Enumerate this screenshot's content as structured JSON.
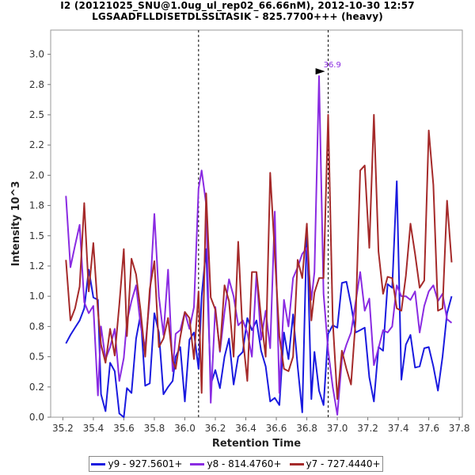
{
  "title_line1": "I2 (20121025_SNU@1.0ug_ul_rep02_66.66nM), 2012-10-30 12:57",
  "title_line2": "LGSAADFLLDISETDLSSLTASIK - 825.7700+++ (heavy)",
  "chart_data": {
    "type": "line",
    "xlabel": "Retention Time",
    "ylabel": "Intensity 10^3",
    "xlim": [
      35.12,
      37.82
    ],
    "ylim": [
      0,
      3.2
    ],
    "x_ticks": [
      "35.2",
      "35.4",
      "35.6",
      "35.8",
      "36.0",
      "36.2",
      "36.4",
      "36.6",
      "36.8",
      "37.0",
      "37.2",
      "37.4",
      "37.6",
      "37.8"
    ],
    "y_ticks": [
      "0.0",
      "0.2",
      "0.5",
      "0.8",
      "1.0",
      "1.2",
      "1.5",
      "1.8",
      "2.0",
      "2.2",
      "2.5",
      "2.8",
      "3.0"
    ],
    "vlines": [
      36.09,
      36.94
    ],
    "peak_annotation": {
      "text": "36.9",
      "x": 36.93,
      "y": 2.82
    },
    "series": [
      {
        "name": "y9 - 927.5601+",
        "color": "#1a1adf",
        "x": [
          35.22,
          35.25,
          35.28,
          35.31,
          35.34,
          35.37,
          35.4,
          35.43,
          35.45,
          35.48,
          35.51,
          35.54,
          35.57,
          35.6,
          35.62,
          35.65,
          35.68,
          35.71,
          35.74,
          35.77,
          35.8,
          35.83,
          35.86,
          35.89,
          35.92,
          35.94,
          35.97,
          36.0,
          36.03,
          36.06,
          36.09,
          36.11,
          36.14,
          36.17,
          36.2,
          36.23,
          36.26,
          36.29,
          36.32,
          36.35,
          36.38,
          36.41,
          36.44,
          36.47,
          36.5,
          36.53,
          36.56,
          36.59,
          36.62,
          36.65,
          36.68,
          36.71,
          36.74,
          36.77,
          36.8,
          36.83,
          36.85,
          36.88,
          36.91,
          36.94,
          36.97,
          37.0,
          37.03,
          37.06,
          37.09,
          37.12,
          37.15,
          37.18,
          37.21,
          37.24,
          37.27,
          37.3,
          37.33,
          37.36,
          37.39,
          37.42,
          37.45,
          37.48,
          37.51,
          37.54,
          37.57,
          37.6,
          37.63,
          37.66,
          37.69,
          37.72,
          37.75
        ],
        "y": [
          0.61,
          0.68,
          0.74,
          0.8,
          0.9,
          1.22,
          0.99,
          0.97,
          0.19,
          0.05,
          0.45,
          0.38,
          0.03,
          0.0,
          0.24,
          0.2,
          0.65,
          0.85,
          0.26,
          0.28,
          0.86,
          0.7,
          0.19,
          0.25,
          0.3,
          0.5,
          0.58,
          0.13,
          0.64,
          0.7,
          0.4,
          1.0,
          1.39,
          0.27,
          0.39,
          0.24,
          0.5,
          0.65,
          0.27,
          0.5,
          0.54,
          0.82,
          0.72,
          0.8,
          0.55,
          0.42,
          0.13,
          0.16,
          0.1,
          0.7,
          0.48,
          0.85,
          0.42,
          0.04,
          1.57,
          0.15,
          0.54,
          0.22,
          0.1,
          0.69,
          0.76,
          0.74,
          1.11,
          1.12,
          0.93,
          0.7,
          0.72,
          0.74,
          0.33,
          0.13,
          0.58,
          0.55,
          1.1,
          1.07,
          1.95,
          0.31,
          0.6,
          0.68,
          0.41,
          0.42,
          0.57,
          0.58,
          0.42,
          0.22,
          0.5,
          0.86,
          1.0
        ]
      },
      {
        "name": "y8 - 814.4760+",
        "color": "#8a2be2",
        "x": [
          35.22,
          35.25,
          35.28,
          35.31,
          35.34,
          35.37,
          35.4,
          35.43,
          35.45,
          35.48,
          35.51,
          35.54,
          35.57,
          35.6,
          35.62,
          35.65,
          35.68,
          35.71,
          35.74,
          35.77,
          35.8,
          35.83,
          35.86,
          35.89,
          35.92,
          35.94,
          35.97,
          36.0,
          36.03,
          36.06,
          36.09,
          36.11,
          36.14,
          36.17,
          36.2,
          36.23,
          36.26,
          36.29,
          36.32,
          36.35,
          36.38,
          36.41,
          36.44,
          36.47,
          36.5,
          36.53,
          36.56,
          36.59,
          36.62,
          36.65,
          36.68,
          36.71,
          36.74,
          36.77,
          36.8,
          36.83,
          36.85,
          36.88,
          36.91,
          36.94,
          36.97,
          37.0,
          37.03,
          37.06,
          37.09,
          37.12,
          37.15,
          37.18,
          37.21,
          37.24,
          37.27,
          37.3,
          37.33,
          37.36,
          37.39,
          37.42,
          37.45,
          37.48,
          37.51,
          37.54,
          37.57,
          37.6,
          37.63,
          37.66,
          37.69,
          37.72,
          37.75
        ],
        "y": [
          1.83,
          1.24,
          1.42,
          1.59,
          0.95,
          0.86,
          0.92,
          0.18,
          0.75,
          0.48,
          0.58,
          0.73,
          0.3,
          0.49,
          0.79,
          0.96,
          1.09,
          0.76,
          0.57,
          0.99,
          1.68,
          1.0,
          0.68,
          1.22,
          0.38,
          0.69,
          0.72,
          0.87,
          0.73,
          0.91,
          1.89,
          2.04,
          1.76,
          0.12,
          0.91,
          0.54,
          0.87,
          1.14,
          1.0,
          0.76,
          0.8,
          0.7,
          0.5,
          1.19,
          0.64,
          0.88,
          0.57,
          1.7,
          0.2,
          0.97,
          0.75,
          1.15,
          1.24,
          1.35,
          1.4,
          0.97,
          1.2,
          2.82,
          1.02,
          0.55,
          0.25,
          0.02,
          0.48,
          0.6,
          0.7,
          0.95,
          1.2,
          0.88,
          0.98,
          0.43,
          0.57,
          0.72,
          0.7,
          0.75,
          1.09,
          1.0,
          1.0,
          0.97,
          1.04,
          0.7,
          0.92,
          1.04,
          1.09,
          0.96,
          1.02,
          0.81,
          0.78
        ]
      },
      {
        "name": "y7 - 727.4440+",
        "color": "#a52a2a",
        "x": [
          35.22,
          35.25,
          35.28,
          35.31,
          35.34,
          35.37,
          35.4,
          35.43,
          35.45,
          35.48,
          35.51,
          35.54,
          35.57,
          35.6,
          35.62,
          35.65,
          35.68,
          35.71,
          35.74,
          35.77,
          35.8,
          35.83,
          35.86,
          35.89,
          35.92,
          35.94,
          35.97,
          36.0,
          36.03,
          36.06,
          36.09,
          36.11,
          36.14,
          36.17,
          36.2,
          36.23,
          36.26,
          36.29,
          36.32,
          36.35,
          36.38,
          36.41,
          36.44,
          36.47,
          36.5,
          36.53,
          36.56,
          36.59,
          36.62,
          36.65,
          36.68,
          36.71,
          36.74,
          36.77,
          36.8,
          36.83,
          36.85,
          36.88,
          36.91,
          36.94,
          36.97,
          37.0,
          37.03,
          37.06,
          37.09,
          37.12,
          37.15,
          37.18,
          37.21,
          37.24,
          37.27,
          37.3,
          37.33,
          37.36,
          37.39,
          37.42,
          37.45,
          37.48,
          37.51,
          37.54,
          37.57,
          37.6,
          37.63,
          37.66,
          37.69,
          37.72,
          37.75
        ],
        "y": [
          1.3,
          0.8,
          0.9,
          1.08,
          1.77,
          1.04,
          1.44,
          0.88,
          0.6,
          0.45,
          0.73,
          0.51,
          0.93,
          1.39,
          0.67,
          1.31,
          1.18,
          0.88,
          0.5,
          1.06,
          1.29,
          0.58,
          0.65,
          0.82,
          0.47,
          0.4,
          0.66,
          0.87,
          0.82,
          0.48,
          1.04,
          0.2,
          1.85,
          0.99,
          0.89,
          0.55,
          1.09,
          0.96,
          0.5,
          1.45,
          0.66,
          0.3,
          1.2,
          1.2,
          0.82,
          0.5,
          2.02,
          1.35,
          0.67,
          0.4,
          0.38,
          0.5,
          1.3,
          1.15,
          1.6,
          0.8,
          1.03,
          1.15,
          1.15,
          2.5,
          0.8,
          0.15,
          0.55,
          0.4,
          0.27,
          0.8,
          2.04,
          2.08,
          1.4,
          2.5,
          1.37,
          1.02,
          1.16,
          1.15,
          0.9,
          0.88,
          1.17,
          1.6,
          1.35,
          1.07,
          1.13,
          2.37,
          1.92,
          0.88,
          0.9,
          1.79,
          1.28
        ]
      }
    ]
  }
}
